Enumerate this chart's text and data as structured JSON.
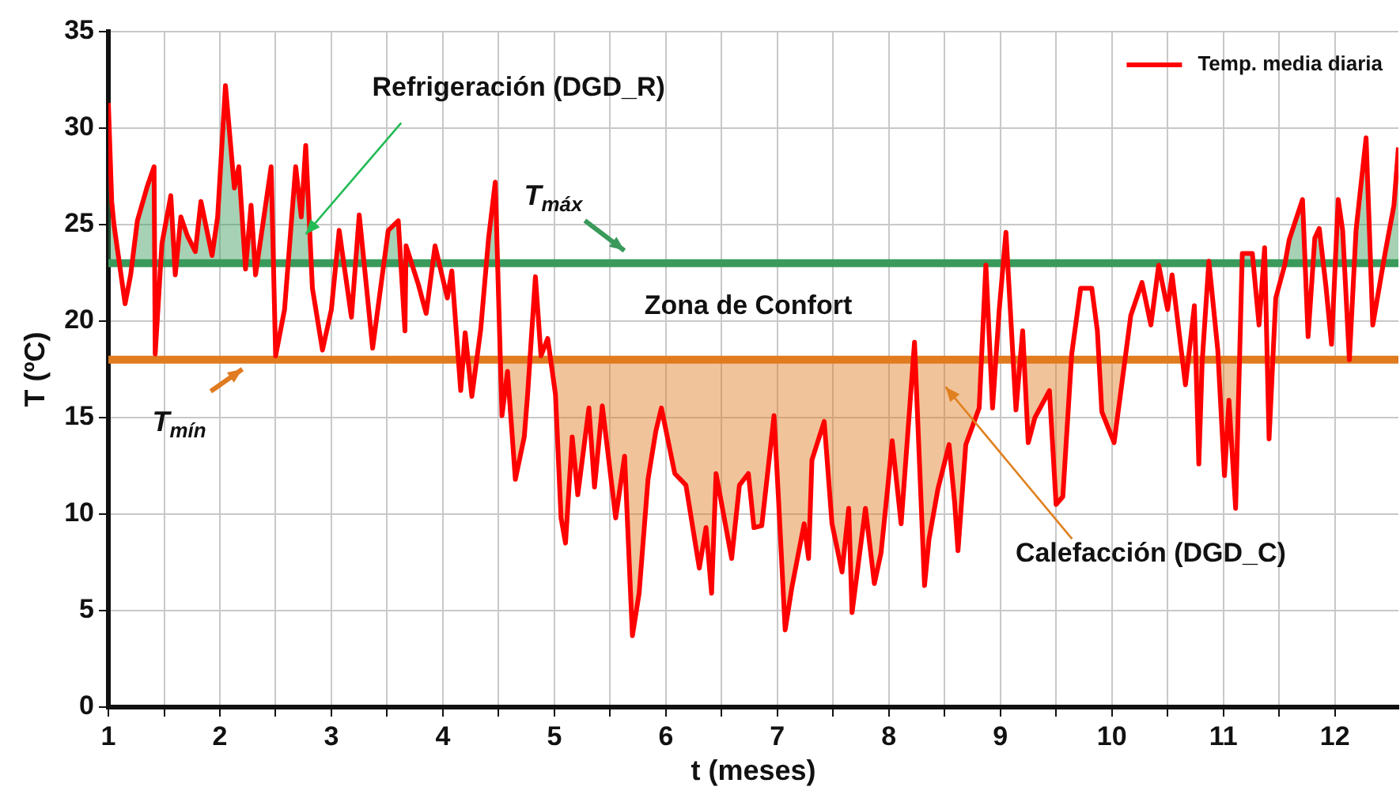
{
  "chart_data": {
    "type": "line",
    "xlabel": "t (meses)",
    "ylabel": "T (ºC)",
    "x": [
      1.0,
      1.03,
      1.05,
      1.15,
      1.2,
      1.26,
      1.3,
      1.35,
      1.41,
      1.42,
      1.48,
      1.56,
      1.6,
      1.65,
      1.71,
      1.78,
      1.83,
      1.93,
      1.98,
      2.05,
      2.13,
      2.17,
      2.23,
      2.28,
      2.32,
      2.46,
      2.5,
      2.58,
      2.68,
      2.73,
      2.77,
      2.83,
      2.92,
      3.0,
      3.07,
      3.18,
      3.25,
      3.37,
      3.51,
      3.6,
      3.66,
      3.67,
      3.78,
      3.85,
      3.93,
      4.04,
      4.08,
      4.16,
      4.2,
      4.26,
      4.34,
      4.41,
      4.47,
      4.53,
      4.58,
      4.65,
      4.73,
      4.76,
      4.83,
      4.88,
      4.94,
      5.01,
      5.06,
      5.1,
      5.16,
      5.21,
      5.31,
      5.36,
      5.43,
      5.55,
      5.63,
      5.7,
      5.76,
      5.84,
      5.91,
      5.96,
      6.08,
      6.18,
      6.3,
      6.36,
      6.41,
      6.45,
      6.59,
      6.66,
      6.74,
      6.79,
      6.86,
      6.97,
      7.01,
      7.07,
      7.13,
      7.24,
      7.28,
      7.31,
      7.42,
      7.49,
      7.58,
      7.64,
      7.67,
      7.79,
      7.87,
      7.93,
      7.99,
      8.03,
      8.11,
      8.23,
      8.32,
      8.36,
      8.44,
      8.54,
      8.59,
      8.62,
      8.69,
      8.81,
      8.87,
      8.93,
      8.99,
      9.05,
      9.14,
      9.2,
      9.25,
      9.31,
      9.44,
      9.5,
      9.56,
      9.64,
      9.72,
      9.82,
      9.87,
      9.91,
      10.02,
      10.17,
      10.27,
      10.35,
      10.42,
      10.5,
      10.54,
      10.66,
      10.74,
      10.78,
      10.81,
      10.87,
      10.95,
      11.01,
      11.05,
      11.11,
      11.17,
      11.26,
      11.32,
      11.37,
      11.41,
      11.47,
      11.55,
      11.59,
      11.71,
      11.76,
      11.82,
      11.86,
      11.92,
      11.97,
      12.03,
      12.07,
      12.13,
      12.19,
      12.28,
      12.34,
      12.45,
      12.53,
      12.57
    ],
    "series": [
      {
        "name": "Temp. media diaria",
        "color": "#ff0000",
        "values": [
          31.3,
          26.2,
          25.0,
          20.9,
          22.4,
          25.2,
          26.0,
          27.0,
          28.0,
          18.3,
          24.0,
          26.5,
          22.4,
          25.4,
          24.4,
          23.6,
          26.2,
          23.4,
          25.4,
          32.2,
          26.9,
          28.0,
          22.7,
          26.0,
          22.4,
          28.0,
          18.2,
          20.6,
          28.0,
          25.4,
          29.1,
          21.7,
          18.5,
          20.6,
          24.7,
          20.2,
          25.5,
          18.6,
          24.7,
          25.2,
          19.5,
          23.9,
          21.9,
          20.4,
          23.9,
          21.2,
          22.6,
          16.4,
          19.4,
          16.1,
          19.6,
          24.3,
          27.2,
          15.1,
          17.4,
          11.8,
          14.0,
          16.2,
          22.3,
          18.2,
          19.1,
          16.2,
          9.8,
          8.5,
          14.0,
          11.0,
          15.5,
          11.4,
          15.6,
          9.8,
          13.0,
          3.7,
          5.9,
          11.8,
          14.3,
          15.5,
          12.1,
          11.5,
          7.2,
          9.3,
          5.9,
          12.1,
          7.7,
          11.5,
          12.1,
          9.3,
          9.4,
          15.1,
          10.8,
          4.0,
          6.2,
          9.5,
          7.7,
          12.8,
          14.8,
          9.5,
          7.0,
          10.3,
          4.9,
          10.3,
          6.4,
          8.0,
          11.4,
          13.8,
          9.5,
          18.9,
          6.3,
          8.7,
          11.3,
          13.6,
          10.6,
          8.1,
          13.6,
          15.5,
          22.9,
          15.5,
          20.6,
          24.6,
          15.4,
          19.5,
          13.7,
          15.0,
          16.4,
          10.5,
          10.9,
          18.3,
          21.7,
          21.7,
          19.5,
          15.3,
          13.7,
          20.3,
          22.0,
          19.8,
          22.9,
          20.6,
          22.4,
          16.7,
          20.8,
          12.6,
          17.9,
          23.1,
          18.5,
          12.0,
          15.9,
          10.3,
          23.5,
          23.5,
          19.8,
          23.8,
          13.9,
          21.2,
          22.9,
          24.2,
          26.3,
          19.2,
          24.3,
          24.8,
          21.8,
          18.8,
          26.3,
          24.7,
          18.0,
          24.7,
          29.5,
          19.8,
          23.5,
          26.0,
          29.0
        ]
      }
    ],
    "xlim": [
      1,
      12.57
    ],
    "xticks": [
      1,
      {
        "value": 1.5,
        "label": null
      },
      2,
      {
        "value": 2.5,
        "label": null
      },
      3,
      {
        "value": 3.5,
        "label": null
      },
      4,
      {
        "value": 4.5,
        "label": null
      },
      5,
      {
        "value": 5.5,
        "label": null
      },
      6,
      {
        "value": 6.5,
        "label": null
      },
      7,
      {
        "value": 7.5,
        "label": null
      },
      8,
      {
        "value": 8.5,
        "label": null
      },
      9,
      {
        "value": 9.5,
        "label": null
      },
      10,
      {
        "value": 10.5,
        "label": null
      },
      11,
      {
        "value": 11.5,
        "label": null
      },
      12
    ],
    "ylim": [
      0,
      35
    ],
    "yticks": [
      0,
      5,
      10,
      15,
      20,
      25,
      30,
      35
    ],
    "ref_lines": [
      {
        "axis": "y",
        "value": 23,
        "label": "T$_{máx}$",
        "color": "#3a9a5b"
      },
      {
        "axis": "y",
        "value": 18,
        "label": "T$_{mín}$",
        "color": "#e07b20"
      }
    ],
    "annotations": [
      {
        "text": "Refrigeración (DGD_R)",
        "x": 2.77,
        "y": 24.5
      },
      "Zona de Confort",
      "Calefacción (DGD_C)"
    ],
    "grid": true,
    "legend": "top right",
    "marker": "none",
    "line_style": "solid"
  }
}
